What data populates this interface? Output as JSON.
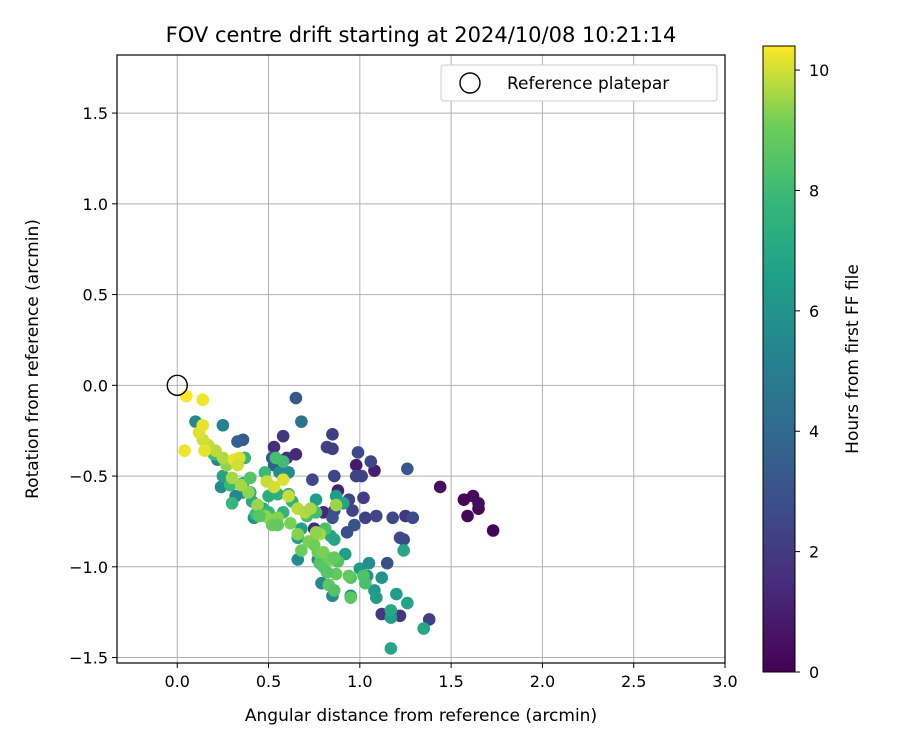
{
  "chart_data": {
    "type": "scatter",
    "title": "FOV centre drift starting at 2024/10/08 10:21:14",
    "xlabel": "Angular distance from reference (arcmin)",
    "ylabel": "Rotation from reference (arcmin)",
    "xlim": [
      -0.33,
      3.0
    ],
    "ylim": [
      -1.53,
      1.82
    ],
    "xticks": [
      0.0,
      0.5,
      1.0,
      1.5,
      2.0,
      2.5,
      3.0
    ],
    "xtick_labels": [
      "0.0",
      "0.5",
      "1.0",
      "1.5",
      "2.0",
      "2.5",
      "3.0"
    ],
    "yticks": [
      -1.5,
      -1.0,
      -0.5,
      0.0,
      0.5,
      1.0,
      1.5
    ],
    "ytick_labels": [
      "−1.5",
      "−1.0",
      "−0.5",
      "0.0",
      "0.5",
      "1.0",
      "1.5"
    ],
    "grid": true,
    "legend": {
      "placement": "upper right",
      "entries": [
        {
          "label": "Reference platepar",
          "marker": "open-circle"
        }
      ]
    },
    "reference_point": {
      "x": 0.0,
      "y": 0.0
    },
    "colorbar": {
      "label": "Hours from first FF file",
      "colormap": "viridis",
      "range": [
        0,
        10.4
      ],
      "ticks": [
        0,
        2,
        4,
        6,
        8,
        10
      ],
      "tick_labels": [
        "0",
        "2",
        "4",
        "6",
        "8",
        "10"
      ]
    },
    "points": [
      [
        1.73,
        -0.8,
        0.1
      ],
      [
        1.65,
        -0.68,
        0.2
      ],
      [
        1.62,
        -0.61,
        0.3
      ],
      [
        1.57,
        -0.63,
        0.1
      ],
      [
        1.59,
        -0.72,
        0.2
      ],
      [
        1.65,
        -0.65,
        0.4
      ],
      [
        1.44,
        -0.56,
        0.5
      ],
      [
        1.08,
        -0.47,
        1.0
      ],
      [
        0.98,
        -0.44,
        0.8
      ],
      [
        0.88,
        -0.58,
        1.0
      ],
      [
        0.8,
        -0.7,
        1.2
      ],
      [
        0.75,
        -0.79,
        1.3
      ],
      [
        0.53,
        -0.34,
        1.5
      ],
      [
        0.6,
        -0.4,
        1.6
      ],
      [
        0.65,
        -0.38,
        1.4
      ],
      [
        0.58,
        -0.28,
        1.8
      ],
      [
        1.25,
        -0.72,
        1.9
      ],
      [
        1.12,
        -1.26,
        1.9
      ],
      [
        1.22,
        -1.27,
        1.9
      ],
      [
        1.38,
        -1.29,
        2.2
      ],
      [
        0.85,
        -0.27,
        2.2
      ],
      [
        0.82,
        -0.34,
        2.3
      ],
      [
        0.85,
        -0.35,
        2.2
      ],
      [
        0.99,
        -0.37,
        2.6
      ],
      [
        1.06,
        -0.42,
        2.5
      ],
      [
        0.74,
        -0.52,
        2.6
      ],
      [
        0.86,
        -0.5,
        2.5
      ],
      [
        0.98,
        -0.5,
        2.3
      ],
      [
        1.01,
        -0.5,
        2.3
      ],
      [
        0.94,
        -0.63,
        2.4
      ],
      [
        1.02,
        -0.62,
        2.2
      ],
      [
        0.86,
        -0.69,
        2.6
      ],
      [
        0.96,
        -0.69,
        2.4
      ],
      [
        1.03,
        -0.73,
        2.3
      ],
      [
        1.09,
        -0.72,
        2.5
      ],
      [
        1.18,
        -0.73,
        2.6
      ],
      [
        1.29,
        -0.73,
        2.7
      ],
      [
        0.93,
        -0.81,
        2.9
      ],
      [
        1.22,
        -0.84,
        2.7
      ],
      [
        1.24,
        -0.85,
        2.6
      ],
      [
        1.15,
        -0.98,
        2.8
      ],
      [
        0.97,
        -0.77,
        3.0
      ],
      [
        0.85,
        -0.73,
        3.0
      ],
      [
        0.65,
        -0.07,
        3.3
      ],
      [
        0.36,
        -0.3,
        3.4
      ],
      [
        0.33,
        -0.31,
        3.6
      ],
      [
        0.52,
        -0.4,
        3.3
      ],
      [
        0.53,
        -0.44,
        3.5
      ],
      [
        1.26,
        -0.46,
        3.2
      ],
      [
        0.68,
        -0.2,
        4.4
      ],
      [
        0.25,
        -0.22,
        5.2
      ],
      [
        0.1,
        -0.2,
        5.5
      ],
      [
        0.22,
        -0.41,
        5.5
      ],
      [
        0.28,
        -0.53,
        5.3
      ],
      [
        0.24,
        -0.56,
        5.6
      ],
      [
        0.36,
        -0.59,
        5.9
      ],
      [
        0.32,
        -0.61,
        5.4
      ],
      [
        0.42,
        -0.73,
        6.0
      ],
      [
        0.56,
        -0.48,
        5.6
      ],
      [
        0.61,
        -0.48,
        5.7
      ],
      [
        0.66,
        -0.96,
        5.7
      ],
      [
        0.77,
        -0.96,
        5.6
      ],
      [
        0.79,
        -1.09,
        5.5
      ],
      [
        0.85,
        -1.16,
        5.7
      ],
      [
        0.95,
        -1.16,
        5.8
      ],
      [
        1.0,
        -1.01,
        6.2
      ],
      [
        1.04,
        -1.05,
        6.0
      ],
      [
        1.05,
        -0.98,
        5.8
      ],
      [
        1.12,
        -1.06,
        6.0
      ],
      [
        1.08,
        -1.13,
        6.3
      ],
      [
        1.09,
        -1.17,
        6.4
      ],
      [
        1.17,
        -1.28,
        6.6
      ],
      [
        1.2,
        -1.15,
        6.5
      ],
      [
        1.26,
        -1.2,
        6.7
      ],
      [
        1.35,
        -1.34,
        6.9
      ],
      [
        1.17,
        -1.45,
        6.9
      ],
      [
        1.17,
        -1.24,
        7.0
      ],
      [
        1.24,
        -0.91,
        6.9
      ],
      [
        0.92,
        -0.93,
        6.6
      ],
      [
        0.76,
        -0.63,
        6.5
      ],
      [
        0.87,
        -0.61,
        6.5
      ],
      [
        0.91,
        -0.65,
        6.8
      ],
      [
        0.84,
        -0.83,
        7.0
      ],
      [
        0.86,
        -0.85,
        6.9
      ],
      [
        0.66,
        -0.84,
        6.6
      ],
      [
        0.68,
        -0.79,
        6.7
      ],
      [
        0.25,
        -0.5,
        6.7
      ],
      [
        0.36,
        -0.54,
        7.1
      ],
      [
        0.4,
        -0.59,
        7.1
      ],
      [
        0.41,
        -0.64,
        7.2
      ],
      [
        0.44,
        -0.66,
        7.3
      ],
      [
        0.47,
        -0.68,
        7.0
      ],
      [
        0.5,
        -0.61,
        7.3
      ],
      [
        0.55,
        -0.6,
        7.4
      ],
      [
        0.61,
        -0.6,
        7.5
      ],
      [
        0.63,
        -0.64,
        7.5
      ],
      [
        0.58,
        -0.7,
        7.6
      ],
      [
        0.54,
        -0.74,
        7.7
      ],
      [
        0.5,
        -0.7,
        7.8
      ],
      [
        0.43,
        -0.71,
        7.9
      ],
      [
        0.3,
        -0.65,
        7.8
      ],
      [
        0.29,
        -0.55,
        7.9
      ],
      [
        0.2,
        -0.38,
        8.0
      ],
      [
        0.37,
        -0.4,
        7.8
      ],
      [
        0.48,
        -0.48,
        7.9
      ],
      [
        0.58,
        -0.42,
        8.0
      ],
      [
        0.54,
        -0.4,
        8.2
      ],
      [
        0.71,
        -0.72,
        8.2
      ],
      [
        0.76,
        -0.7,
        8.2
      ],
      [
        0.81,
        -0.79,
        8.3
      ],
      [
        0.88,
        -0.97,
        8.4
      ],
      [
        0.95,
        -1.06,
        8.4
      ],
      [
        1.02,
        -1.05,
        8.4
      ],
      [
        1.03,
        -1.09,
        8.3
      ],
      [
        0.78,
        -0.98,
        8.5
      ],
      [
        0.8,
        -1.0,
        8.6
      ],
      [
        0.83,
        -1.1,
        8.7
      ],
      [
        0.87,
        -1.04,
        8.9
      ],
      [
        0.82,
        -0.95,
        8.8
      ],
      [
        0.77,
        -0.92,
        9.0
      ],
      [
        0.72,
        -0.86,
        9.2
      ],
      [
        0.66,
        -0.82,
        9.3
      ],
      [
        0.62,
        -0.76,
        9.2
      ],
      [
        0.55,
        -0.73,
        9.3
      ],
      [
        0.51,
        -0.74,
        9.3
      ],
      [
        0.48,
        -0.72,
        9.4
      ],
      [
        0.44,
        -0.66,
        9.5
      ],
      [
        0.39,
        -0.59,
        9.4
      ],
      [
        0.35,
        -0.55,
        9.6
      ],
      [
        0.3,
        -0.51,
        9.6
      ],
      [
        0.27,
        -0.44,
        9.4
      ],
      [
        0.25,
        -0.4,
        9.7
      ],
      [
        0.21,
        -0.36,
        9.8
      ],
      [
        0.17,
        -0.33,
        9.9
      ],
      [
        0.14,
        -0.3,
        10.0
      ],
      [
        0.12,
        -0.26,
        10.1
      ],
      [
        0.14,
        -0.22,
        10.2
      ],
      [
        0.14,
        -0.08,
        10.3
      ],
      [
        0.05,
        -0.06,
        10.4
      ],
      [
        0.04,
        -0.36,
        10.3
      ],
      [
        0.15,
        -0.36,
        10.2
      ],
      [
        0.31,
        -0.41,
        10.2
      ],
      [
        0.34,
        -0.4,
        10.1
      ],
      [
        0.33,
        -0.44,
        10.0
      ],
      [
        0.49,
        -0.53,
        9.9
      ],
      [
        0.53,
        -0.56,
        10.0
      ],
      [
        0.58,
        -0.52,
        10.1
      ],
      [
        0.61,
        -0.61,
        9.9
      ],
      [
        0.66,
        -0.68,
        9.8
      ],
      [
        0.7,
        -0.7,
        9.7
      ],
      [
        0.73,
        -0.68,
        9.6
      ],
      [
        0.78,
        -0.82,
        9.6
      ],
      [
        0.87,
        -0.66,
        9.5
      ],
      [
        0.76,
        -0.81,
        9.4
      ],
      [
        0.8,
        -0.92,
        9.2
      ],
      [
        0.75,
        -0.88,
        9.1
      ],
      [
        0.68,
        -0.91,
        9.0
      ],
      [
        0.84,
        -0.96,
        9.1
      ],
      [
        0.86,
        -0.95,
        8.9
      ],
      [
        0.94,
        -1.05,
        8.8
      ],
      [
        0.95,
        -1.17,
        8.7
      ],
      [
        0.82,
        -1.03,
        8.6
      ],
      [
        0.86,
        -1.13,
        8.5
      ],
      [
        0.52,
        -0.77,
        9.0
      ],
      [
        0.55,
        -0.77,
        8.8
      ],
      [
        0.45,
        -0.72,
        8.6
      ],
      [
        0.4,
        -0.51,
        8.5
      ]
    ]
  }
}
